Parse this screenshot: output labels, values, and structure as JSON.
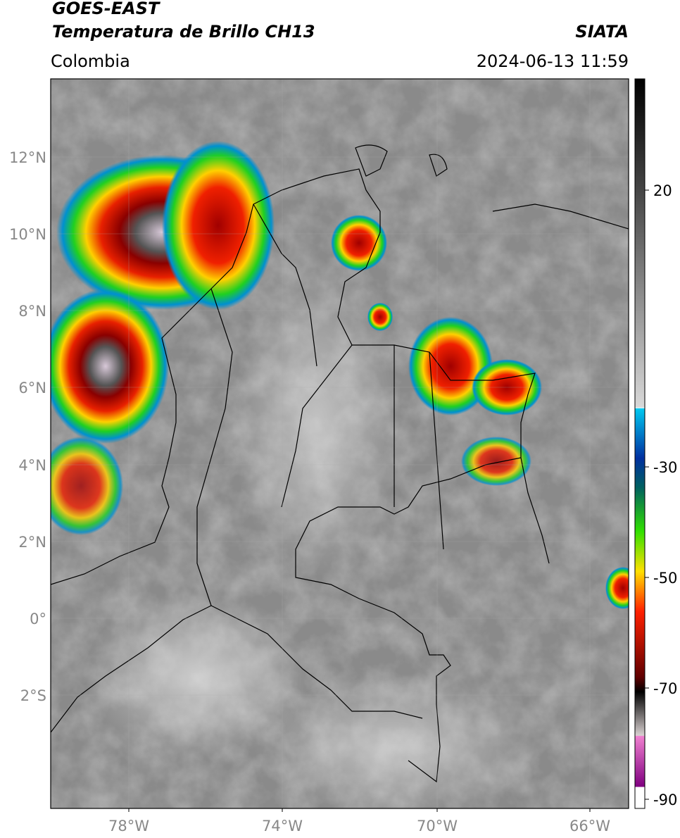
{
  "header": {
    "title_line1": "GOES-EAST",
    "title_line2": "Temperatura de Brillo CH13",
    "region": "Colombia",
    "source": "SIATA",
    "timestamp": "2024-06-13 11:59"
  },
  "map": {
    "lat_labels": [
      "12°N",
      "10°N",
      "8°N",
      "6°N",
      "4°N",
      "2°N",
      "0°",
      "2°S"
    ],
    "lon_labels": [
      "78°W",
      "74°W",
      "70°W",
      "66°W"
    ]
  },
  "colorbar": {
    "ticks": [
      20,
      -30,
      -50,
      -70,
      -90
    ]
  }
}
